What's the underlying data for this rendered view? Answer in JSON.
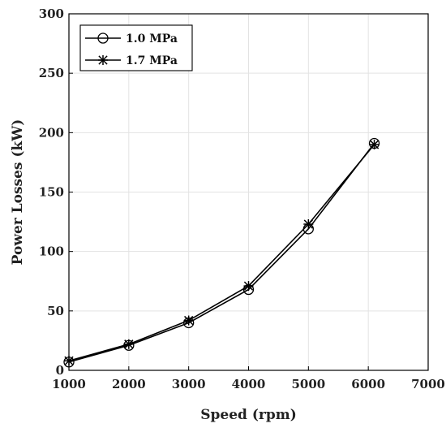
{
  "chart_data": {
    "type": "line",
    "xlabel": "Speed (rpm)",
    "ylabel": "Power Losses (kW)",
    "xlim": [
      1000,
      7000
    ],
    "ylim": [
      0,
      300
    ],
    "xticks": [
      1000,
      2000,
      3000,
      4000,
      5000,
      6000,
      7000
    ],
    "yticks": [
      0,
      50,
      100,
      150,
      200,
      250,
      300
    ],
    "grid": true,
    "legend_position": "top-left",
    "series": [
      {
        "name": "1.0 MPa",
        "marker": "circle",
        "color": "#000000",
        "x": [
          1000,
          2000,
          3000,
          4000,
          5000,
          6100
        ],
        "y": [
          7,
          21,
          40,
          68,
          119,
          191
        ]
      },
      {
        "name": "1.7 MPa",
        "marker": "asterisk",
        "color": "#000000",
        "x": [
          1000,
          2000,
          3000,
          4000,
          5000,
          6100
        ],
        "y": [
          8,
          22,
          42,
          71,
          123,
          190
        ]
      }
    ]
  }
}
